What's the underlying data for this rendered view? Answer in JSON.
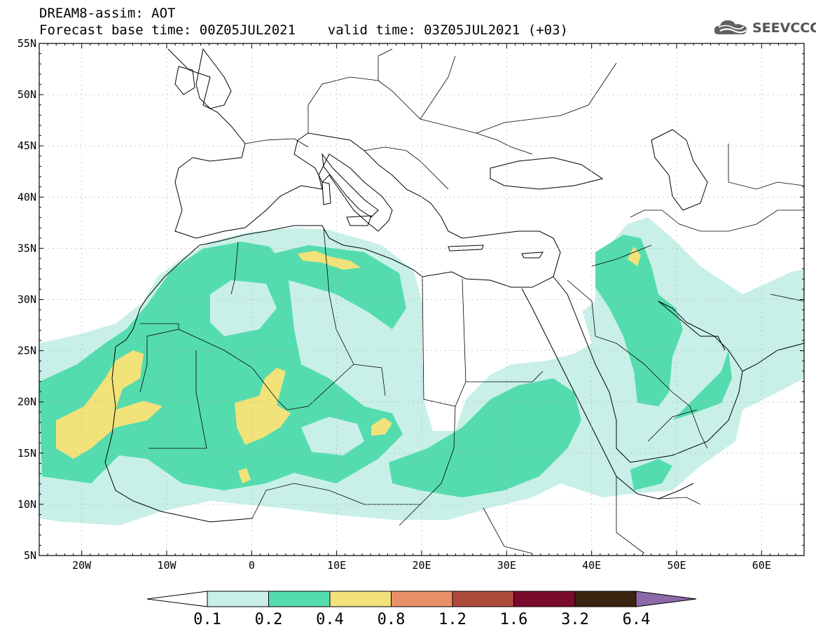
{
  "title": {
    "line1": "DREAM8-assim: AOT",
    "line2": "Forecast base time: 00Z05JUL2021    valid time: 03Z05JUL2021 (+03)"
  },
  "logo": {
    "text": "SEEVCCC",
    "icon": "cloud-icon"
  },
  "map": {
    "lon_range": [
      -25,
      65
    ],
    "lat_range": [
      5,
      55
    ],
    "lat_ticks": [
      "55N",
      "50N",
      "45N",
      "40N",
      "35N",
      "30N",
      "25N",
      "20N",
      "15N",
      "10N",
      "5N"
    ],
    "lon_ticks": [
      "20W",
      "10W",
      "0",
      "10E",
      "20E",
      "30E",
      "40E",
      "50E",
      "60E"
    ]
  },
  "colorbar": {
    "levels": [
      "0.1",
      "0.2",
      "0.4",
      "0.8",
      "1.2",
      "1.6",
      "3.2",
      "6.4"
    ],
    "colors": [
      "#c8f0e8",
      "#55dcae",
      "#f2e27a",
      "#e9906a",
      "#ad4a3c",
      "#7a0a2c",
      "#3a2410",
      "#8a6aa8"
    ]
  }
}
